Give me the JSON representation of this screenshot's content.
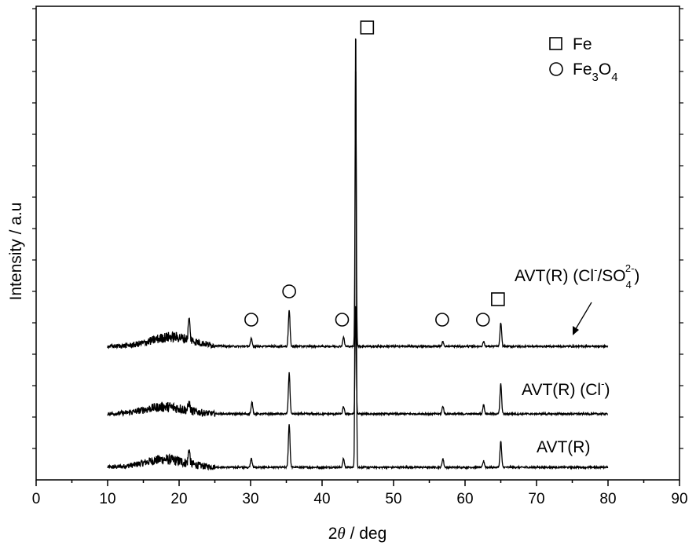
{
  "chart_data": {
    "type": "line",
    "title": "",
    "xlabel_prefix": "2",
    "xlabel_theta": "θ",
    "xlabel_suffix": " / deg",
    "ylabel": "Intensity / a.u",
    "xlim": [
      0,
      90
    ],
    "xticks": [
      "0",
      "10",
      "20",
      "30",
      "40",
      "50",
      "60",
      "70",
      "80",
      "90"
    ],
    "yticks_shown": false,
    "grid": false,
    "legend_position": "top-right",
    "legend": [
      {
        "symbol": "square",
        "label": "Fe",
        "sub": "",
        "label_tail": ""
      },
      {
        "symbol": "circle",
        "label": "Fe",
        "sub": "3",
        "label_tail": "O",
        "sub2": "4"
      }
    ],
    "series": [
      {
        "name": "AVT(R)",
        "label_parts": {
          "main": "AVT(R)"
        },
        "baseline": 0,
        "hump": {
          "center": 18,
          "width": 4,
          "height": 10
        },
        "peaks": [
          {
            "x": 21.4,
            "h": 18
          },
          {
            "x": 30.1,
            "h": 12
          },
          {
            "x": 35.4,
            "h": 55
          },
          {
            "x": 43.0,
            "h": 11
          },
          {
            "x": 44.7,
            "h": 560
          },
          {
            "x": 56.9,
            "h": 11
          },
          {
            "x": 62.6,
            "h": 8
          },
          {
            "x": 65.0,
            "h": 33
          }
        ]
      },
      {
        "name": "AVT(R) (Cl⁻)",
        "label_parts": {
          "main": "AVT(R) (Cl",
          "sup": "-",
          "tail": ")"
        },
        "baseline": 68,
        "hump": {
          "center": 18,
          "width": 4,
          "height": 9
        },
        "peaks": [
          {
            "x": 21.4,
            "h": 10
          },
          {
            "x": 30.2,
            "h": 15
          },
          {
            "x": 35.4,
            "h": 52
          },
          {
            "x": 43.0,
            "h": 9
          },
          {
            "x": 44.7,
            "h": 140
          },
          {
            "x": 56.9,
            "h": 10
          },
          {
            "x": 62.6,
            "h": 12
          },
          {
            "x": 65.0,
            "h": 38
          }
        ]
      },
      {
        "name": "AVT(R) (Cl⁻/SO₄²⁻)",
        "label_parts": {
          "main": "AVT(R) (Cl",
          "sup": "-",
          "mid": "/SO",
          "sub": "4",
          "sup2": "2-",
          "tail": ")"
        },
        "baseline": 154,
        "hump": {
          "center": 19,
          "width": 4,
          "height": 12
        },
        "peaks": [
          {
            "x": 21.4,
            "h": 27
          },
          {
            "x": 30.1,
            "h": 10
          },
          {
            "x": 35.4,
            "h": 46
          },
          {
            "x": 43.0,
            "h": 12
          },
          {
            "x": 44.7,
            "h": 360
          },
          {
            "x": 56.9,
            "h": 6
          },
          {
            "x": 62.6,
            "h": 6
          },
          {
            "x": 65.0,
            "h": 30
          }
        ]
      }
    ],
    "markers": [
      {
        "symbol": "square",
        "x": 46.3,
        "series": 2,
        "level": 0
      },
      {
        "symbol": "circle",
        "x": 30.1,
        "series": 2,
        "level": -1
      },
      {
        "symbol": "circle",
        "x": 35.4,
        "series": 2,
        "level": -2
      },
      {
        "symbol": "circle",
        "x": 42.8,
        "series": 2,
        "level": -1
      },
      {
        "symbol": "circle",
        "x": 56.8,
        "series": 2,
        "level": -1
      },
      {
        "symbol": "circle",
        "x": 62.5,
        "series": 2,
        "level": -1
      },
      {
        "symbol": "square",
        "x": 64.6,
        "series": 2,
        "level": -3
      }
    ]
  }
}
